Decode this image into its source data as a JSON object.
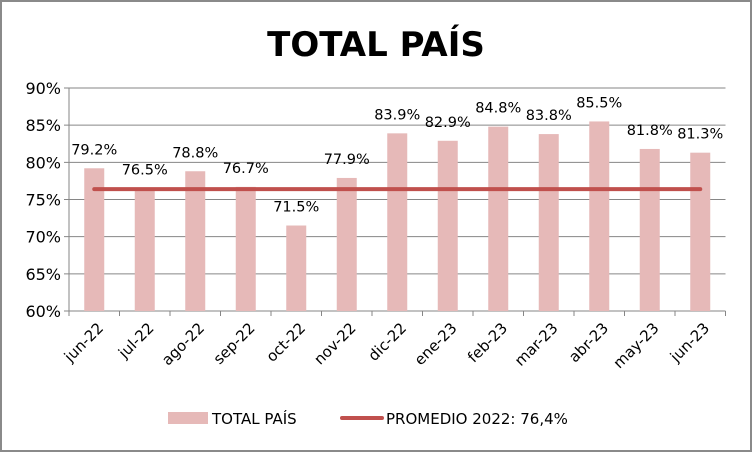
{
  "chart_data": {
    "type": "bar",
    "title": "TOTAL PAÍS",
    "categories": [
      "jun-22",
      "jul-22",
      "ago-22",
      "sep-22",
      "oct-22",
      "nov-22",
      "dic-22",
      "ene-23",
      "feb-23",
      "mar-23",
      "abr-23",
      "may-23",
      "jun-23"
    ],
    "series": [
      {
        "name": "TOTAL PAÍS",
        "type": "bar",
        "values": [
          79.2,
          76.5,
          78.8,
          76.7,
          71.5,
          77.9,
          83.9,
          82.9,
          84.8,
          83.8,
          85.5,
          81.8,
          81.3
        ],
        "labels": [
          "79.2%",
          "76.5%",
          "78.8%",
          "76.7%",
          "71.5%",
          "77.9%",
          "83.9%",
          "82.9%",
          "84.8%",
          "83.8%",
          "85.5%",
          "81.8%",
          "81.3%"
        ],
        "color": "#e6b9b8"
      },
      {
        "name": "PROMEDIO 2022: 76,4%",
        "type": "line",
        "value": 76.4,
        "color": "#c0504d"
      }
    ],
    "ylim": [
      60,
      90
    ],
    "yticks": [
      60,
      65,
      70,
      75,
      80,
      85,
      90
    ],
    "ytick_labels": [
      "60%",
      "65%",
      "70%",
      "75%",
      "80%",
      "85%",
      "90%"
    ],
    "grid": true,
    "legend": "bottom",
    "xlabel": "",
    "ylabel": ""
  }
}
